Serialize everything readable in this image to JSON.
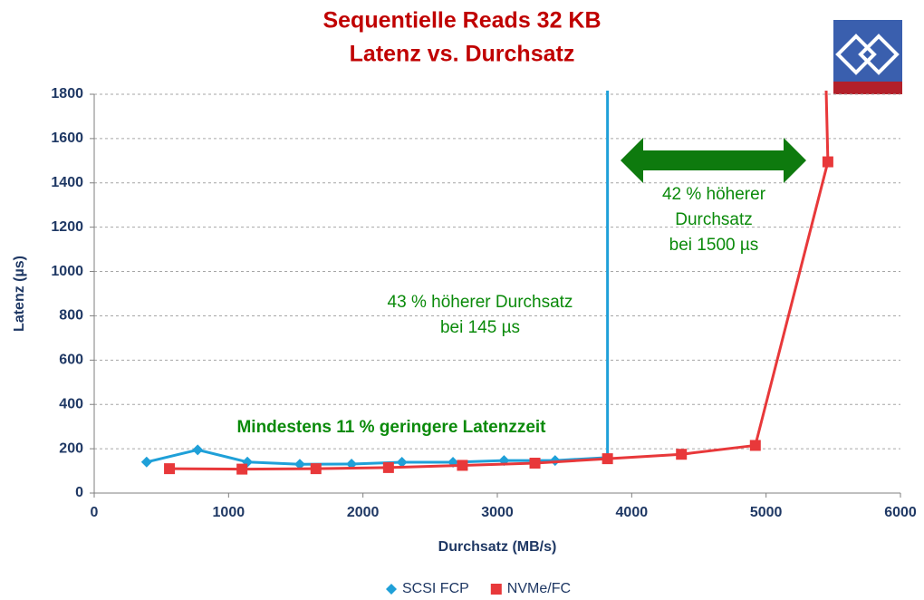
{
  "chart_data": {
    "type": "line",
    "title": "Sequentielle Reads 32 KB",
    "subtitle": "Latenz vs. Durchsatz",
    "x_label": "Durchsatz (MB/s)",
    "y_label": "Latenz (µs)",
    "xlim": [
      0,
      6000
    ],
    "xticks": [
      0,
      1000,
      2000,
      3000,
      4000,
      5000,
      6000
    ],
    "ylim": [
      0,
      1800
    ],
    "yticks": [
      0,
      200,
      400,
      600,
      800,
      1000,
      1200,
      1400,
      1600,
      1800
    ],
    "grid": true,
    "legend": "bottom",
    "series": [
      {
        "name": "SCSI FCP",
        "color": "#1fa0d8",
        "marker": "diamond",
        "x": [
          390,
          770,
          1140,
          1530,
          1915,
          2290,
          2670,
          3050,
          3430,
          3820,
          3820
        ],
        "values": [
          140,
          195,
          140,
          130,
          131,
          139,
          139,
          147,
          147,
          160,
          2000
        ]
      },
      {
        "name": "NVMe/FC",
        "color": "#e8383a",
        "marker": "square",
        "x": [
          560,
          1100,
          1650,
          2190,
          2740,
          3280,
          3820,
          4370,
          4920,
          5460,
          5440
        ],
        "values": [
          110,
          108,
          110,
          115,
          125,
          135,
          155,
          175,
          215,
          1495,
          2000
        ]
      }
    ],
    "annotations": [
      "43 % höherer Durchsatz",
      "bei 145 µs",
      "42 % höherer",
      "Durchsatz",
      "bei 1500 µs",
      "Mindestens 11 % geringere Latenzzeit"
    ]
  }
}
